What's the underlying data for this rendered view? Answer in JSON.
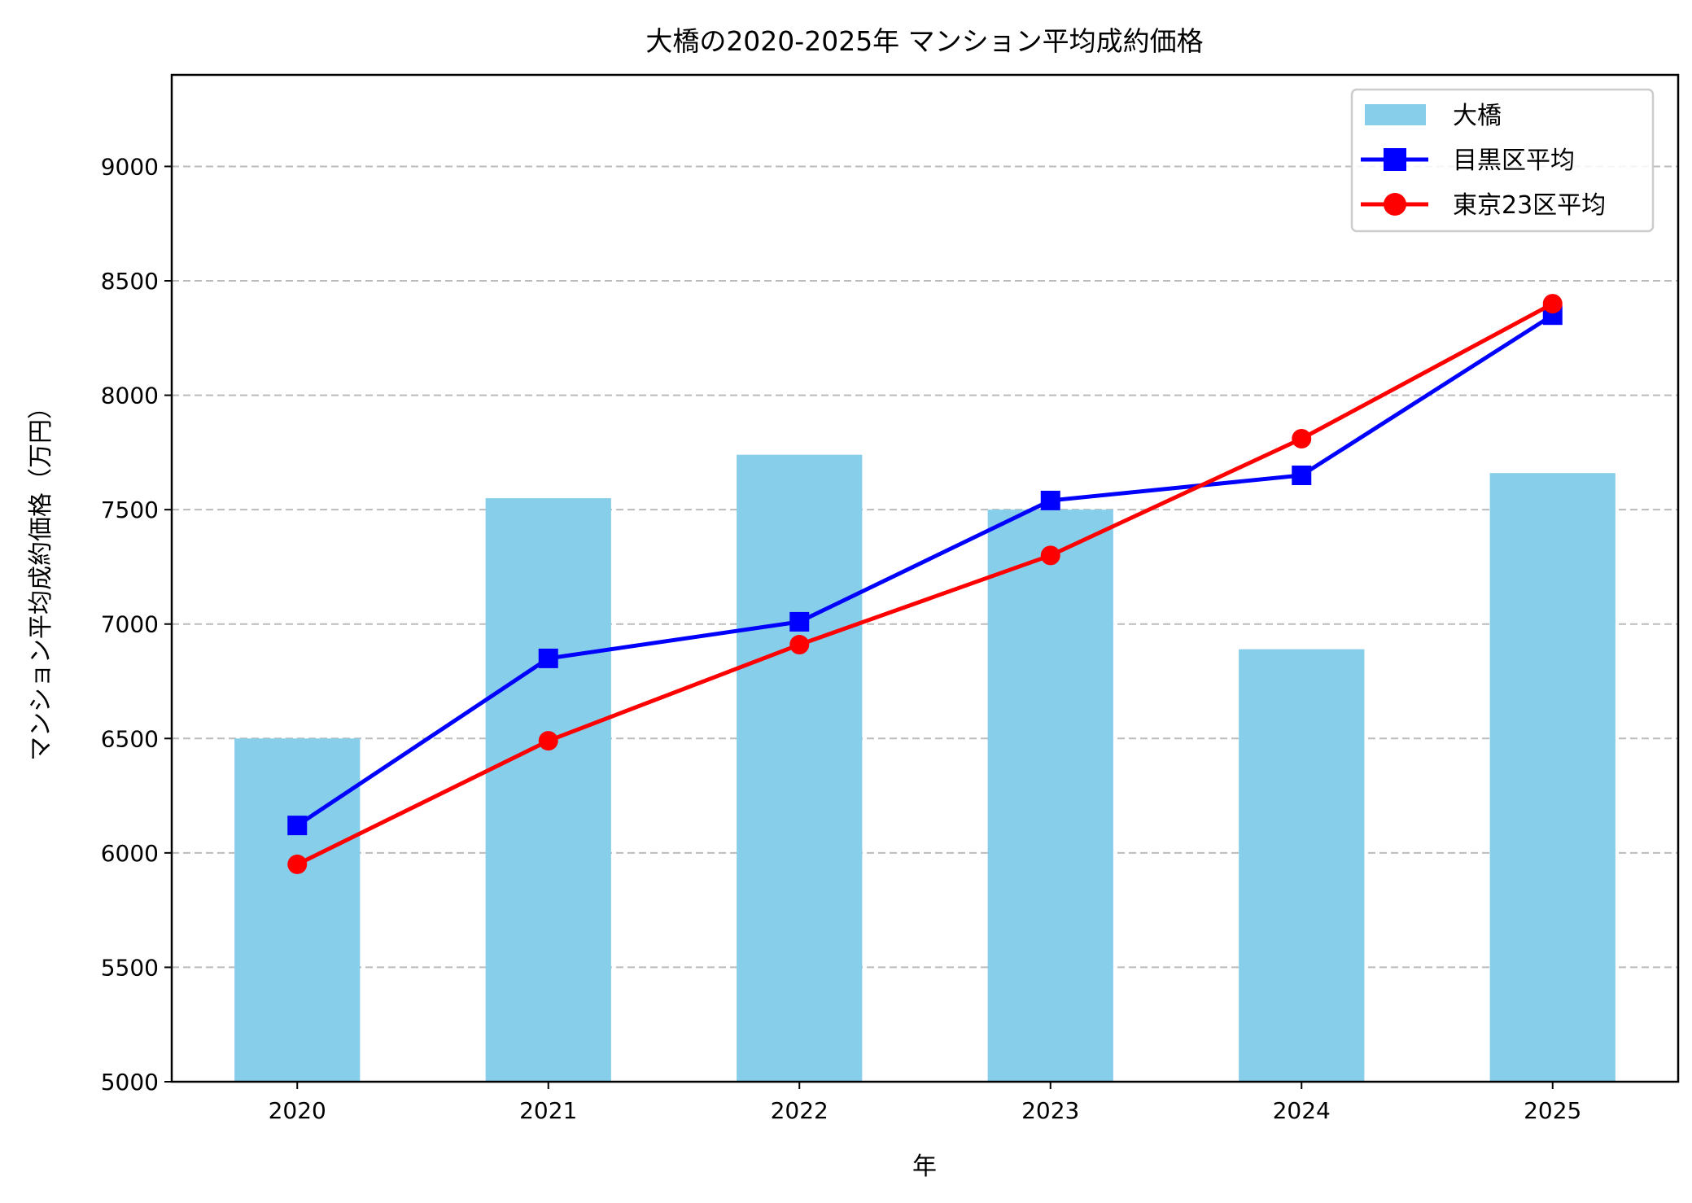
{
  "chart_data": {
    "type": "bar+line",
    "title": "大橋の2020-2025年 マンション平均成約価格",
    "xlabel": "年",
    "ylabel": "マンション平均成約価格（万円）",
    "categories": [
      "2020",
      "2021",
      "2022",
      "2023",
      "2024",
      "2025"
    ],
    "ylim": [
      5000,
      9400
    ],
    "yticks": [
      5000,
      5500,
      6000,
      6500,
      7000,
      7500,
      8000,
      8500,
      9000
    ],
    "grid": "horizontal dashed",
    "legend_position": "top-right",
    "series": [
      {
        "name": "大橋",
        "type": "bar",
        "color": "#87ceeb",
        "values": [
          6500,
          7550,
          7740,
          7500,
          6890,
          7660
        ]
      },
      {
        "name": "目黒区平均",
        "type": "line",
        "marker": "square",
        "color": "#0000ff",
        "values": [
          6120,
          6850,
          7010,
          7540,
          7650,
          8350
        ]
      },
      {
        "name": "東京23区平均",
        "type": "line",
        "marker": "circle",
        "color": "#ff0000",
        "values": [
          5950,
          6490,
          6910,
          7300,
          7810,
          8400
        ]
      }
    ]
  }
}
